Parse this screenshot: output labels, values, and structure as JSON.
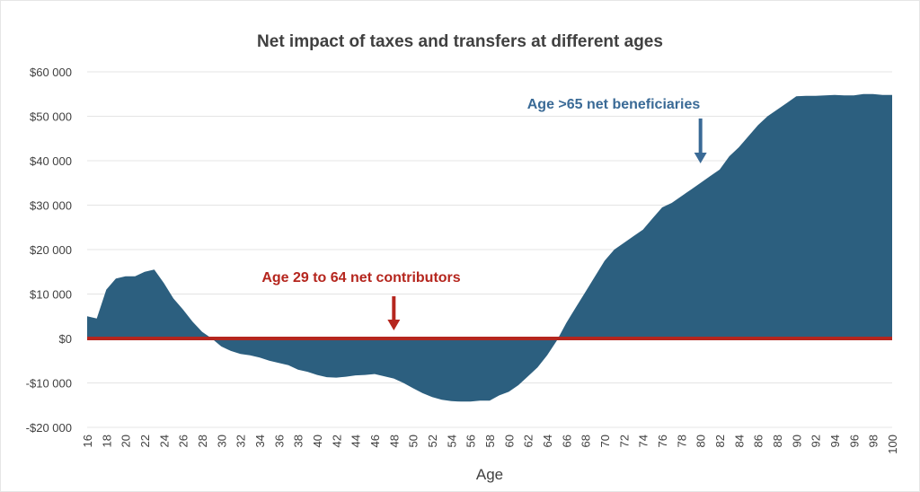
{
  "chart_data": {
    "type": "area",
    "title": "Net impact of taxes and transfers at different ages",
    "xlabel": "Age",
    "ylabel": "",
    "ylim": [
      -20000,
      60000
    ],
    "yticks": [
      60000,
      50000,
      40000,
      30000,
      20000,
      10000,
      0,
      -10000,
      -20000
    ],
    "ytick_labels": [
      "$60 000",
      "$50 000",
      "$40 000",
      "$30 000",
      "$20 000",
      "$10 000",
      "$0",
      "-$10 000",
      "-$20 000"
    ],
    "xlim": [
      16,
      100
    ],
    "xtick_step": 2,
    "grid": true,
    "x": [
      16,
      17,
      18,
      19,
      20,
      21,
      22,
      23,
      24,
      25,
      26,
      27,
      28,
      29,
      30,
      31,
      32,
      33,
      34,
      35,
      36,
      37,
      38,
      39,
      40,
      41,
      42,
      43,
      44,
      45,
      46,
      47,
      48,
      49,
      50,
      51,
      52,
      53,
      54,
      55,
      56,
      57,
      58,
      59,
      60,
      61,
      62,
      63,
      64,
      65,
      66,
      67,
      68,
      69,
      70,
      71,
      72,
      73,
      74,
      75,
      76,
      77,
      78,
      79,
      80,
      81,
      82,
      83,
      84,
      85,
      86,
      87,
      88,
      89,
      90,
      91,
      92,
      93,
      94,
      95,
      96,
      97,
      98,
      99,
      100
    ],
    "values": [
      5000,
      4500,
      11000,
      13500,
      14000,
      14000,
      15000,
      15500,
      12500,
      9000,
      6500,
      3800,
      1500,
      0,
      -1800,
      -2800,
      -3500,
      -3800,
      -4300,
      -5000,
      -5500,
      -6000,
      -7000,
      -7500,
      -8200,
      -8700,
      -8800,
      -8600,
      -8300,
      -8200,
      -8000,
      -8500,
      -9000,
      -10000,
      -11200,
      -12300,
      -13200,
      -13800,
      -14100,
      -14200,
      -14200,
      -14000,
      -14000,
      -12800,
      -12000,
      -10500,
      -8500,
      -6500,
      -3800,
      -500,
      3500,
      7000,
      10500,
      14000,
      17500,
      20000,
      21500,
      23000,
      24500,
      27000,
      29500,
      30500,
      32000,
      33500,
      35000,
      36500,
      38000,
      41000,
      43000,
      45500,
      48000,
      50000,
      51500,
      53000,
      54500,
      54600,
      54600,
      54700,
      54800,
      54700,
      54700,
      55000,
      55000,
      54800,
      54800
    ],
    "colors": {
      "area": "#2c5f7f",
      "zero_line": "#b5261e",
      "red_annotation": "#b5261e",
      "blue_annotation": "#3a6a96",
      "grid": "#e4e4e4"
    },
    "annotations": [
      {
        "text": "Age 29 to  64 net contributors",
        "arrow_age": 48,
        "color": "red"
      },
      {
        "text": "Age >65  net beneficiaries",
        "arrow_age": 80,
        "color": "blue"
      }
    ]
  }
}
